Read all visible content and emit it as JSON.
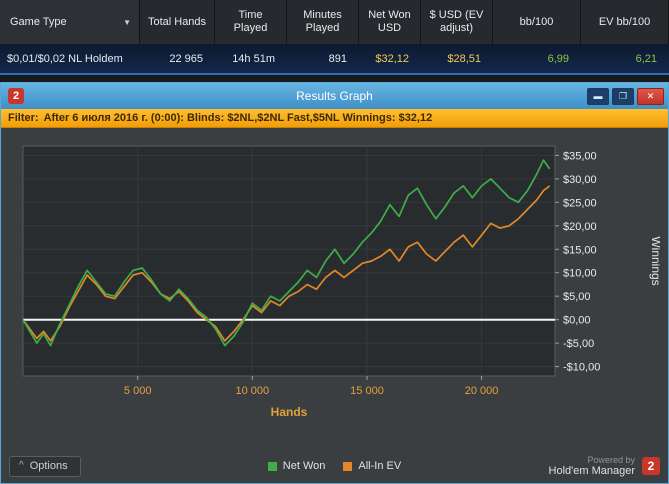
{
  "stats": {
    "columns": [
      "Game Type",
      "Total Hands",
      "Time Played",
      "Minutes Played",
      "Net Won USD",
      "$ USD (EV adjust)",
      "bb/100",
      "EV bb/100"
    ],
    "dropdown_arrow": "▼",
    "row": [
      "$0,01/$0,02 NL Holdem",
      "22 965",
      "14h 51m",
      "891",
      "$32,12",
      "$28,51",
      "6,99",
      "6,21"
    ]
  },
  "window": {
    "title": "Results Graph",
    "logo_glyph": "2",
    "controls": {
      "minimize_glyph": "▬",
      "maximize_glyph": "❐",
      "close_glyph": "✕"
    }
  },
  "filter": {
    "label": "Filter:",
    "text": "After 6 июля 2016 г. (0:00): Blinds: $2NL,$2NL Fast,$5NL Winnings: $32,12"
  },
  "footer": {
    "options_chevron": "^",
    "options_label": "Options",
    "powered_by": "Powered by",
    "brand": "Hold'em Manager",
    "brand_logo": "2"
  },
  "chart_data": {
    "type": "line",
    "title": "",
    "xlabel": "Hands",
    "ylabel": "Winnings",
    "xlim": [
      0,
      23200
    ],
    "ylim": [
      -12,
      37
    ],
    "grid": true,
    "legend_position": "bottom",
    "x_ticks": [
      {
        "value": 5000,
        "label": "5 000"
      },
      {
        "value": 10000,
        "label": "10 000"
      },
      {
        "value": 15000,
        "label": "15 000"
      },
      {
        "value": 20000,
        "label": "20 000"
      }
    ],
    "y_ticks": [
      {
        "value": 35,
        "label": "$35,00"
      },
      {
        "value": 30,
        "label": "$30,00"
      },
      {
        "value": 25,
        "label": "$25,00"
      },
      {
        "value": 20,
        "label": "$20,00"
      },
      {
        "value": 15,
        "label": "$15,00"
      },
      {
        "value": 10,
        "label": "$10,00"
      },
      {
        "value": 5,
        "label": "$5,00"
      },
      {
        "value": 0,
        "label": "$0,00"
      },
      {
        "value": -5,
        "label": "-$5,00"
      },
      {
        "value": -10,
        "label": "-$10,00"
      }
    ],
    "zero_line_value": 0,
    "colors": {
      "plot_bg": "#292c2f",
      "plot_border": "#5a5e62",
      "grid": "#35393c",
      "axis_text": "#e2a03e",
      "tick_text": "#e8eaec",
      "zero_line": "#f5f6f7"
    },
    "series": [
      {
        "name": "Net Won",
        "color": "#3fae49",
        "points": [
          [
            0,
            0
          ],
          [
            300,
            -2.5
          ],
          [
            600,
            -5
          ],
          [
            900,
            -3
          ],
          [
            1200,
            -5.5
          ],
          [
            1600,
            -1
          ],
          [
            2000,
            3
          ],
          [
            2400,
            7
          ],
          [
            2800,
            10.5
          ],
          [
            3200,
            8
          ],
          [
            3600,
            5.5
          ],
          [
            4000,
            5
          ],
          [
            4400,
            8
          ],
          [
            4800,
            10.5
          ],
          [
            5200,
            11
          ],
          [
            5600,
            8.5
          ],
          [
            6000,
            5.5
          ],
          [
            6400,
            4
          ],
          [
            6800,
            6.5
          ],
          [
            7200,
            4.5
          ],
          [
            7600,
            2
          ],
          [
            8000,
            0.5
          ],
          [
            8400,
            -2
          ],
          [
            8800,
            -5.5
          ],
          [
            9200,
            -3.5
          ],
          [
            9600,
            -0.5
          ],
          [
            10000,
            3.5
          ],
          [
            10400,
            2
          ],
          [
            10800,
            5
          ],
          [
            11200,
            4
          ],
          [
            11600,
            6
          ],
          [
            12000,
            8
          ],
          [
            12400,
            10.5
          ],
          [
            12800,
            9
          ],
          [
            13200,
            12.5
          ],
          [
            13600,
            15
          ],
          [
            14000,
            12
          ],
          [
            14400,
            14
          ],
          [
            14800,
            16.5
          ],
          [
            15200,
            18.5
          ],
          [
            15600,
            21
          ],
          [
            16000,
            24.5
          ],
          [
            16400,
            22
          ],
          [
            16800,
            26.5
          ],
          [
            17200,
            28
          ],
          [
            17600,
            24.5
          ],
          [
            18000,
            21.5
          ],
          [
            18400,
            24
          ],
          [
            18800,
            27
          ],
          [
            19200,
            28.5
          ],
          [
            19600,
            26
          ],
          [
            20000,
            28.5
          ],
          [
            20400,
            30
          ],
          [
            20800,
            28
          ],
          [
            21200,
            26
          ],
          [
            21600,
            25
          ],
          [
            22000,
            27.5
          ],
          [
            22400,
            31
          ],
          [
            22700,
            34
          ],
          [
            22965,
            32.12
          ]
        ]
      },
      {
        "name": "All-In EV",
        "color": "#e2882a",
        "points": [
          [
            0,
            0
          ],
          [
            300,
            -2
          ],
          [
            600,
            -4
          ],
          [
            900,
            -2.5
          ],
          [
            1200,
            -4.5
          ],
          [
            1600,
            -1.5
          ],
          [
            2000,
            2.5
          ],
          [
            2400,
            6
          ],
          [
            2800,
            9.5
          ],
          [
            3200,
            7.5
          ],
          [
            3600,
            5
          ],
          [
            4000,
            4.5
          ],
          [
            4400,
            7
          ],
          [
            4800,
            9.5
          ],
          [
            5200,
            10
          ],
          [
            5600,
            8
          ],
          [
            6000,
            5.5
          ],
          [
            6400,
            4.5
          ],
          [
            6800,
            6
          ],
          [
            7200,
            4
          ],
          [
            7600,
            1.5
          ],
          [
            8000,
            0
          ],
          [
            8400,
            -1.5
          ],
          [
            8800,
            -4.5
          ],
          [
            9200,
            -2.5
          ],
          [
            9600,
            0
          ],
          [
            10000,
            3
          ],
          [
            10400,
            1.5
          ],
          [
            10800,
            4
          ],
          [
            11200,
            3
          ],
          [
            11600,
            5
          ],
          [
            12000,
            6
          ],
          [
            12400,
            7.5
          ],
          [
            12800,
            6.5
          ],
          [
            13200,
            9
          ],
          [
            13600,
            10.5
          ],
          [
            14000,
            9
          ],
          [
            14400,
            10.5
          ],
          [
            14800,
            12
          ],
          [
            15200,
            12.5
          ],
          [
            15600,
            13.5
          ],
          [
            16000,
            15
          ],
          [
            16400,
            12.5
          ],
          [
            16800,
            15.5
          ],
          [
            17200,
            16.5
          ],
          [
            17600,
            14
          ],
          [
            18000,
            12.5
          ],
          [
            18400,
            14.5
          ],
          [
            18800,
            16.5
          ],
          [
            19200,
            18
          ],
          [
            19600,
            15.5
          ],
          [
            20000,
            18
          ],
          [
            20400,
            20.5
          ],
          [
            20800,
            19.5
          ],
          [
            21200,
            20
          ],
          [
            21600,
            21.5
          ],
          [
            22000,
            23.5
          ],
          [
            22400,
            25.5
          ],
          [
            22700,
            27.5
          ],
          [
            22965,
            28.51
          ]
        ]
      }
    ]
  }
}
